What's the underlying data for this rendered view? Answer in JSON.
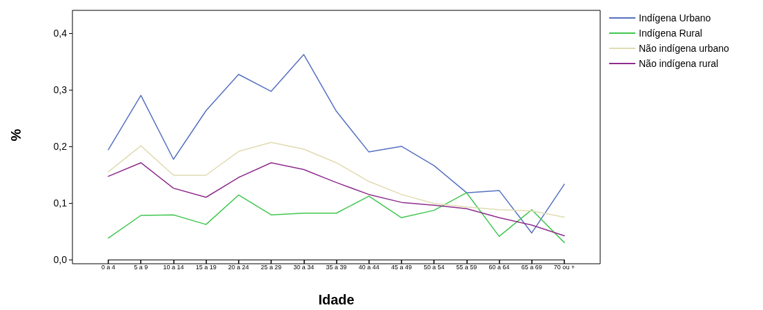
{
  "chart_data": {
    "type": "line",
    "xlabel": "Idade",
    "ylabel": "%",
    "categories": [
      "0 a 4",
      "5 a 9",
      "10 a 14",
      "15 a 19",
      "20 a 24",
      "25 a 29",
      "30 a 34",
      "35 a 39",
      "40 a 44",
      "45 a 49",
      "50 a 54",
      "55 a 59",
      "60 a 64",
      "65 a 69",
      "70 ou +"
    ],
    "series": [
      {
        "name": "Indígena Urbano",
        "color": "#5470c0",
        "values": [
          0.194,
          0.29,
          0.177,
          0.263,
          0.327,
          0.297,
          0.362,
          0.262,
          0.19,
          0.2,
          0.166,
          0.118,
          0.122,
          0.047,
          0.133
        ]
      },
      {
        "name": "Indígena Rural",
        "color": "#3ec64e",
        "values": [
          0.038,
          0.078,
          0.079,
          0.062,
          0.114,
          0.079,
          0.082,
          0.082,
          0.112,
          0.074,
          0.087,
          0.118,
          0.041,
          0.088,
          0.03
        ]
      },
      {
        "name": "Não indígena urbano",
        "color": "#e0dbb0",
        "values": [
          0.155,
          0.201,
          0.149,
          0.149,
          0.191,
          0.207,
          0.195,
          0.171,
          0.138,
          0.115,
          0.099,
          0.093,
          0.088,
          0.086,
          0.075
        ]
      },
      {
        "name": "Não indígena rural",
        "color": "#8e2c8e",
        "values": [
          0.147,
          0.171,
          0.126,
          0.11,
          0.145,
          0.171,
          0.159,
          0.136,
          0.115,
          0.101,
          0.096,
          0.09,
          0.074,
          0.061,
          0.042
        ]
      }
    ],
    "ylim": [
      0,
      0.44
    ],
    "yticks": [
      {
        "value": 0,
        "label": "0,0"
      },
      {
        "value": 0.1,
        "label": "0,1"
      },
      {
        "value": 0.2,
        "label": "0,2"
      },
      {
        "value": 0.3,
        "label": "0,3"
      },
      {
        "value": 0.4,
        "label": "0,4"
      }
    ],
    "grid": false,
    "legend": "top right",
    "marker": "none",
    "line_style": "solid"
  }
}
